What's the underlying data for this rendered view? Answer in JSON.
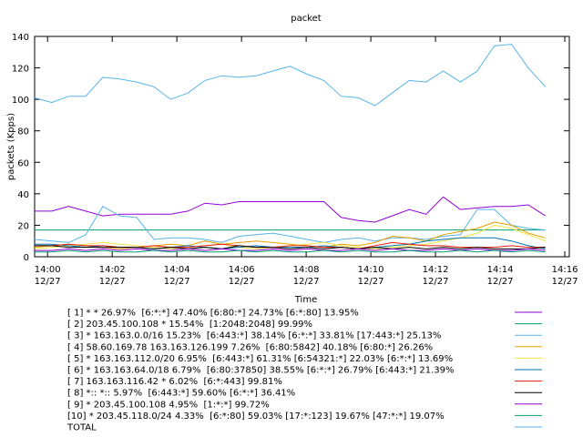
{
  "chart_data": {
    "type": "line",
    "title": "packet",
    "x_label": "Time",
    "y_label": "packets (Kpps)",
    "xlim": [
      -0.4,
      16.14
    ],
    "ylim": [
      0,
      140
    ],
    "xticks": [
      {
        "value": 0,
        "label": "14:00\n12/27"
      },
      {
        "value": 2,
        "label": "14:02\n12/27"
      },
      {
        "value": 4,
        "label": "14:04\n12/27"
      },
      {
        "value": 6,
        "label": "14:06\n12/27"
      },
      {
        "value": 8,
        "label": "14:08\n12/27"
      },
      {
        "value": 10,
        "label": "14:10\n12/27"
      },
      {
        "value": 12,
        "label": "14:12\n12/27"
      },
      {
        "value": 14,
        "label": "14:14\n12/27"
      },
      {
        "value": 16,
        "label": "14:16\n12/27"
      }
    ],
    "yticks": [
      0,
      20,
      40,
      60,
      80,
      100,
      120,
      140
    ],
    "x": [
      -0.4,
      0.13,
      0.65,
      1.18,
      1.71,
      2.23,
      2.76,
      3.29,
      3.81,
      4.34,
      4.87,
      5.39,
      5.92,
      6.45,
      6.97,
      7.5,
      8.03,
      8.55,
      9.08,
      9.61,
      10.13,
      10.66,
      11.19,
      11.71,
      12.24,
      12.77,
      13.29,
      13.82,
      14.35,
      14.87,
      15.4
    ],
    "series": [
      {
        "name": "[ 1] * * 26.97%  [6:*:*] 47.40% [6:80:*] 24.73% [6:*:80] 13.95%",
        "color": "#9400d3",
        "values": [
          29,
          29,
          32,
          29,
          26,
          27,
          27,
          27,
          27,
          29,
          34,
          33,
          35,
          35,
          35,
          35,
          35,
          35,
          25,
          23,
          22,
          26,
          30,
          27,
          38,
          30,
          31,
          32,
          32,
          33,
          26
        ]
      },
      {
        "name": "[ 2] 203.45.100.108 * 15.54%  [1:2048:2048] 99.99%",
        "color": "#009e73",
        "values": [
          17,
          17,
          17,
          17,
          17,
          17,
          17,
          17,
          17,
          17,
          17,
          17,
          17,
          17,
          17,
          17,
          17,
          17,
          17,
          17,
          17,
          17,
          17,
          17,
          17,
          17,
          17,
          17,
          17,
          17,
          17
        ]
      },
      {
        "name": "[ 3] * 163.163.0.0/16 15.23%  [6:443:*] 38.14% [6:*:*] 33.81% [17:443:*] 25.13%",
        "color": "#56b4e9",
        "values": [
          11,
          10,
          9,
          14,
          32,
          26,
          25,
          11,
          12,
          12,
          11,
          9,
          13,
          14,
          15,
          13,
          11,
          9,
          11,
          12,
          10,
          12,
          12,
          11,
          13,
          14,
          30,
          30,
          20,
          18,
          17
        ]
      },
      {
        "name": "[ 4] 58.60.169.78 163.163.126.199 7.26%  [6:80:5842] 40.18% [6:80:*] 26.26%",
        "color": "#e69f00",
        "values": [
          6,
          7,
          8,
          7,
          6,
          5,
          6,
          7,
          8,
          7,
          10,
          8,
          9,
          10,
          9,
          8,
          7,
          6,
          8,
          7,
          9,
          13,
          12,
          10,
          14,
          16,
          18,
          22,
          20,
          15,
          12
        ]
      },
      {
        "name": "[ 5] * 163.163.112.0/20 6.95%  [6:443:*] 61.31% [6:54321:*] 22.03% [6:*:*] 13.69%",
        "color": "#f0e442",
        "values": [
          5,
          6,
          7,
          8,
          9,
          8,
          7,
          6,
          5,
          6,
          7,
          8,
          6,
          5,
          6,
          7,
          8,
          9,
          7,
          6,
          5,
          6,
          7,
          8,
          10,
          12,
          15,
          20,
          18,
          14,
          10
        ]
      },
      {
        "name": "[ 6] * 163.163.64.0/18 6.79%  [6:80:37850] 38.55% [6:*:*] 26.79% [6:443:*] 21.39%",
        "color": "#0072b2",
        "values": [
          8,
          8,
          7,
          6,
          7,
          6,
          6,
          5,
          6,
          7,
          6,
          5,
          6,
          7,
          6,
          6,
          6,
          7,
          6,
          5,
          6,
          7,
          8,
          10,
          11,
          12,
          12,
          12,
          10,
          7,
          5
        ]
      },
      {
        "name": "[ 7] 163.163.116.42 * 6.02%  [6:*:443] 99.81%",
        "color": "#e51e10",
        "values": [
          7,
          7,
          8,
          7,
          7,
          6,
          6,
          7,
          6,
          6,
          7,
          8,
          7,
          6,
          6,
          7,
          7,
          6,
          6,
          5,
          7,
          9,
          8,
          7,
          7,
          6,
          6,
          6,
          7,
          6,
          6
        ]
      },
      {
        "name": "[ 8] *:: *:: 5.97%  [6:443:*] 59.60% [6:*:*] 36.41%",
        "color": "#000000",
        "values": [
          7,
          7,
          6,
          6,
          6,
          6,
          6,
          5,
          6,
          5,
          6,
          5,
          7,
          6,
          6,
          5,
          6,
          5,
          6,
          5,
          6,
          5,
          6,
          5,
          6,
          5,
          6,
          5,
          5,
          5,
          6
        ]
      },
      {
        "name": "[ 9] * 203.45.100.108 4.95%  [1:*:*] 99.72%",
        "color": "#9400d3",
        "values": [
          4,
          4,
          5,
          4,
          5,
          4,
          5,
          4,
          4,
          5,
          4,
          5,
          4,
          4,
          5,
          4,
          5,
          4,
          4,
          5,
          4,
          5,
          4,
          4,
          5,
          4,
          5,
          4,
          4,
          5,
          4
        ]
      },
      {
        "name": "[10] * 203.45.118.0/24 4.33%  [6:*:80] 59.03% [17:*:123] 19.67% [47:*:*] 19.07%",
        "color": "#009e73",
        "values": [
          3,
          3,
          4,
          3,
          4,
          3,
          3,
          4,
          3,
          4,
          3,
          3,
          4,
          3,
          4,
          3,
          3,
          4,
          3,
          4,
          3,
          3,
          4,
          3,
          3,
          4,
          3,
          4,
          3,
          4,
          3
        ]
      },
      {
        "name": "TOTAL",
        "color": "#56b4e9",
        "values": [
          101,
          98,
          102,
          102,
          114,
          113,
          111,
          108,
          100,
          104,
          112,
          115,
          114,
          115,
          118,
          121,
          116,
          112,
          102,
          101,
          96,
          104,
          112,
          111,
          118,
          111,
          118,
          134,
          135,
          120,
          108
        ]
      }
    ]
  }
}
